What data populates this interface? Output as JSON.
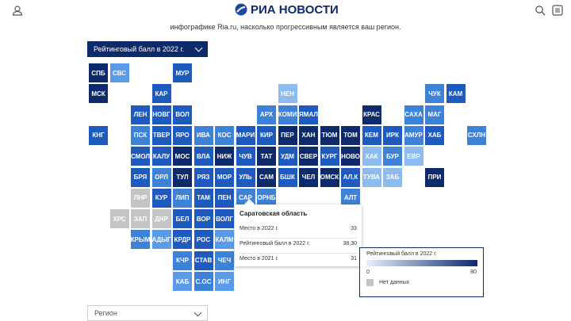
{
  "header": {
    "logo": "РИА НОВОСТИ",
    "intro": "инфографике Ria.ru, насколько прогрессивным является ваш регион."
  },
  "metric_select": "Рейтинговый балл в 2022 г.",
  "tiles": [
    {
      "label": "СПБ",
      "color": "#0d2a6b"
    },
    {
      "label": "СВС",
      "color": "#5b9ae6"
    },
    {
      "label": "МУР",
      "color": "#1f5bbf"
    },
    {
      "label": "МСК",
      "color": "#0d2a6b"
    },
    {
      "label": "КАР",
      "color": "#1f5bbf"
    },
    {
      "label": "НЕН",
      "color": "#8cbcef"
    },
    {
      "label": "ЧУК",
      "color": "#3d82d6"
    },
    {
      "label": "КАМ",
      "color": "#1f5bbf"
    },
    {
      "label": "ЛЕН",
      "color": "#1f5bbf"
    },
    {
      "label": "НОВГ",
      "color": "#1f5bbf"
    },
    {
      "label": "ВОЛ",
      "color": "#1f5bbf"
    },
    {
      "label": "АРХ",
      "color": "#3d82d6"
    },
    {
      "label": "КОМИ",
      "color": "#3d82d6"
    },
    {
      "label": "ЯМАЛ",
      "color": "#1f5bbf"
    },
    {
      "label": "КРАС",
      "color": "#0d2a6b"
    },
    {
      "label": "САХА",
      "color": "#3d82d6"
    },
    {
      "label": "МАГ",
      "color": "#3d82d6"
    },
    {
      "label": "КНГ",
      "color": "#1f5bbf"
    },
    {
      "label": "ПСК",
      "color": "#3d82d6"
    },
    {
      "label": "ТВЕР",
      "color": "#1f5bbf"
    },
    {
      "label": "ЯРО",
      "color": "#1f5bbf"
    },
    {
      "label": "ИВА",
      "color": "#3d82d6"
    },
    {
      "label": "КОС",
      "color": "#3d82d6"
    },
    {
      "label": "МАРИ",
      "color": "#1f5bbf"
    },
    {
      "label": "КИР",
      "color": "#1f5bbf"
    },
    {
      "label": "ПЕР",
      "color": "#0d2a6b"
    },
    {
      "label": "ХАН",
      "color": "#0d2a6b"
    },
    {
      "label": "ТЮМ",
      "color": "#0d2a6b"
    },
    {
      "label": "ТОМ",
      "color": "#0d2a6b"
    },
    {
      "label": "КЕМ",
      "color": "#1f5bbf"
    },
    {
      "label": "ИРК",
      "color": "#1f5bbf"
    },
    {
      "label": "АМУР",
      "color": "#3d82d6"
    },
    {
      "label": "ХАБ",
      "color": "#1f5bbf"
    },
    {
      "label": "СХЛН",
      "color": "#3d82d6"
    },
    {
      "label": "СМОЛ",
      "color": "#1f5bbf"
    },
    {
      "label": "КАЛУ",
      "color": "#1f5bbf"
    },
    {
      "label": "МОС",
      "color": "#0d2a6b"
    },
    {
      "label": "ВЛА",
      "color": "#1f5bbf"
    },
    {
      "label": "НИЖ",
      "color": "#0d2a6b"
    },
    {
      "label": "ЧУВ",
      "color": "#1f5bbf"
    },
    {
      "label": "ТАТ",
      "color": "#0d2a6b"
    },
    {
      "label": "УДМ",
      "color": "#1f5bbf"
    },
    {
      "label": "СВЕР",
      "color": "#0d2a6b"
    },
    {
      "label": "КУРГ",
      "color": "#1f5bbf"
    },
    {
      "label": "НОВО",
      "color": "#0d2a6b"
    },
    {
      "label": "ХАК",
      "color": "#8cbcef"
    },
    {
      "label": "БУР",
      "color": "#3d82d6"
    },
    {
      "label": "ЕВР",
      "color": "#8cbcef"
    },
    {
      "label": "БРЯ",
      "color": "#1f5bbf"
    },
    {
      "label": "ОРЛ",
      "color": "#3d82d6"
    },
    {
      "label": "ТУЛ",
      "color": "#0d2a6b"
    },
    {
      "label": "РЯЗ",
      "color": "#1f5bbf"
    },
    {
      "label": "МОР",
      "color": "#1f5bbf"
    },
    {
      "label": "УЛЬ",
      "color": "#1f5bbf"
    },
    {
      "label": "САМ",
      "color": "#0d2a6b"
    },
    {
      "label": "БШК",
      "color": "#1f5bbf"
    },
    {
      "label": "ЧЕЛ",
      "color": "#0d2a6b"
    },
    {
      "label": "ОМСК",
      "color": "#0d2a6b"
    },
    {
      "label": "АЛ.К",
      "color": "#1f5bbf"
    },
    {
      "label": "ТУВА",
      "color": "#8cbcef"
    },
    {
      "label": "ЗАБ",
      "color": "#8cbcef"
    },
    {
      "label": "ПРИ",
      "color": "#0d2a6b"
    },
    {
      "label": "ЛНР",
      "color": "#c4c4c4"
    },
    {
      "label": "КУР",
      "color": "#1f5bbf"
    },
    {
      "label": "ЛИП",
      "color": "#3d82d6"
    },
    {
      "label": "ТАМ",
      "color": "#1f5bbf"
    },
    {
      "label": "ПЕН",
      "color": "#1f5bbf"
    },
    {
      "label": "САР",
      "color": "#3d82d6"
    },
    {
      "label": "ОРНБ",
      "color": "#3d82d6"
    },
    {
      "label": "АЛТ",
      "color": "#3d82d6"
    },
    {
      "label": "ХРС",
      "color": "#c4c4c4"
    },
    {
      "label": "ЗАП",
      "color": "#c4c4c4"
    },
    {
      "label": "ДНР",
      "color": "#c4c4c4"
    },
    {
      "label": "БЕЛ",
      "color": "#1f5bbf"
    },
    {
      "label": "ВОР",
      "color": "#1f5bbf"
    },
    {
      "label": "ВОЛГ",
      "color": "#1f5bbf"
    },
    {
      "label": "КРЫМ",
      "color": "#3d82d6"
    },
    {
      "label": "АДЫГ",
      "color": "#5b9ae6"
    },
    {
      "label": "КРДР",
      "color": "#1f5bbf"
    },
    {
      "label": "РОС",
      "color": "#1f5bbf"
    },
    {
      "label": "КАЛМ",
      "color": "#5b9ae6"
    },
    {
      "label": "КЧР",
      "color": "#3d82d6"
    },
    {
      "label": "СТАВ",
      "color": "#1f5bbf"
    },
    {
      "label": "ЧЕЧ",
      "color": "#3d82d6"
    },
    {
      "label": "КАБ",
      "color": "#5b9ae6"
    },
    {
      "label": "С.ОС",
      "color": "#3d82d6"
    },
    {
      "label": "ИНГ",
      "color": "#5b9ae6"
    }
  ],
  "tooltip": {
    "title": "Саратовская область",
    "rows": [
      [
        "Место в 2022 г.",
        "33"
      ],
      [
        "Рейтинговый балл в 2022 г.",
        "38,30"
      ],
      [
        "Место в 2021 г.",
        "31"
      ]
    ]
  },
  "legend": {
    "title": "Рейтинговый балл в 2022 г.",
    "min": "0",
    "max": "80",
    "no_data": "Нет данных"
  },
  "region_select": "Регион"
}
